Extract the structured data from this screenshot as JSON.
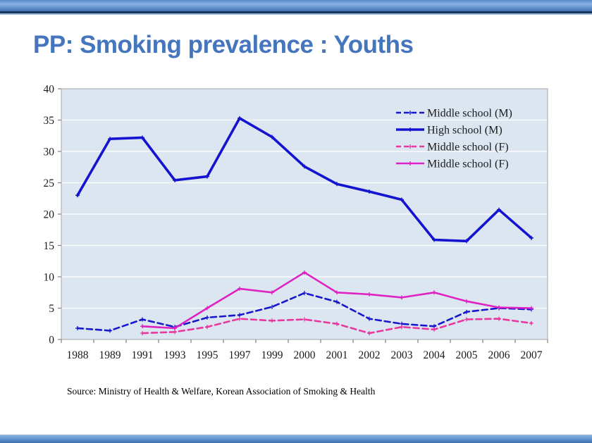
{
  "slide": {
    "title": "PP: Smoking prevalence : Youths",
    "source": "Source: Ministry of Health & Welfare, Korean Association of Smoking & Health"
  },
  "theme": {
    "title_color": "#4576BD",
    "top_bar_dark_line": "#16365C",
    "top_bar_blue": "#6496D0",
    "plot_background": "#DCE6F1",
    "gridline_color": "#FFFFFF",
    "axis_color": "#808080",
    "plot_border_color": "#A6A6A6"
  },
  "chart_data": {
    "type": "line",
    "title": "",
    "xlabel": "",
    "ylabel": "",
    "categories": [
      "1988",
      "1989",
      "1991",
      "1993",
      "1995",
      "1997",
      "1999",
      "2000",
      "2001",
      "2002",
      "2003",
      "2004",
      "2005",
      "2006",
      "2007"
    ],
    "ylim": [
      0,
      40
    ],
    "yticks": [
      0,
      5,
      10,
      15,
      20,
      25,
      30,
      35,
      40
    ],
    "grid": true,
    "legend_position": "top-right",
    "plot_bg": "#DCE6F1",
    "series": [
      {
        "name": "Middle school (M)",
        "style": "dashed",
        "color": "#1717CE",
        "width": 2.6,
        "values": [
          1.8,
          1.4,
          3.2,
          2.0,
          3.5,
          3.9,
          5.2,
          7.4,
          6.0,
          3.3,
          2.5,
          2.1,
          4.4,
          5.0,
          4.8
        ]
      },
      {
        "name": "High school (M)",
        "style": "solid",
        "color": "#1414D0",
        "width": 3.6,
        "values": [
          23.0,
          32.0,
          32.2,
          25.4,
          26.0,
          35.3,
          32.3,
          27.6,
          24.8,
          23.6,
          22.3,
          15.9,
          15.7,
          20.7,
          16.2
        ]
      },
      {
        "name": "Middle school (F)",
        "style": "dashed",
        "color": "#E8389F",
        "width": 2.6,
        "values": [
          null,
          null,
          1.0,
          1.2,
          2.0,
          3.3,
          3.0,
          3.2,
          2.5,
          1.0,
          2.0,
          1.6,
          3.2,
          3.3,
          2.6
        ]
      },
      {
        "name": "Middle school (F)",
        "style": "solid",
        "color": "#DE22C3",
        "width": 2.6,
        "values": [
          null,
          null,
          2.1,
          1.8,
          5.0,
          8.1,
          7.5,
          10.7,
          7.5,
          7.2,
          6.7,
          7.5,
          6.1,
          5.1,
          5.0
        ]
      }
    ]
  }
}
